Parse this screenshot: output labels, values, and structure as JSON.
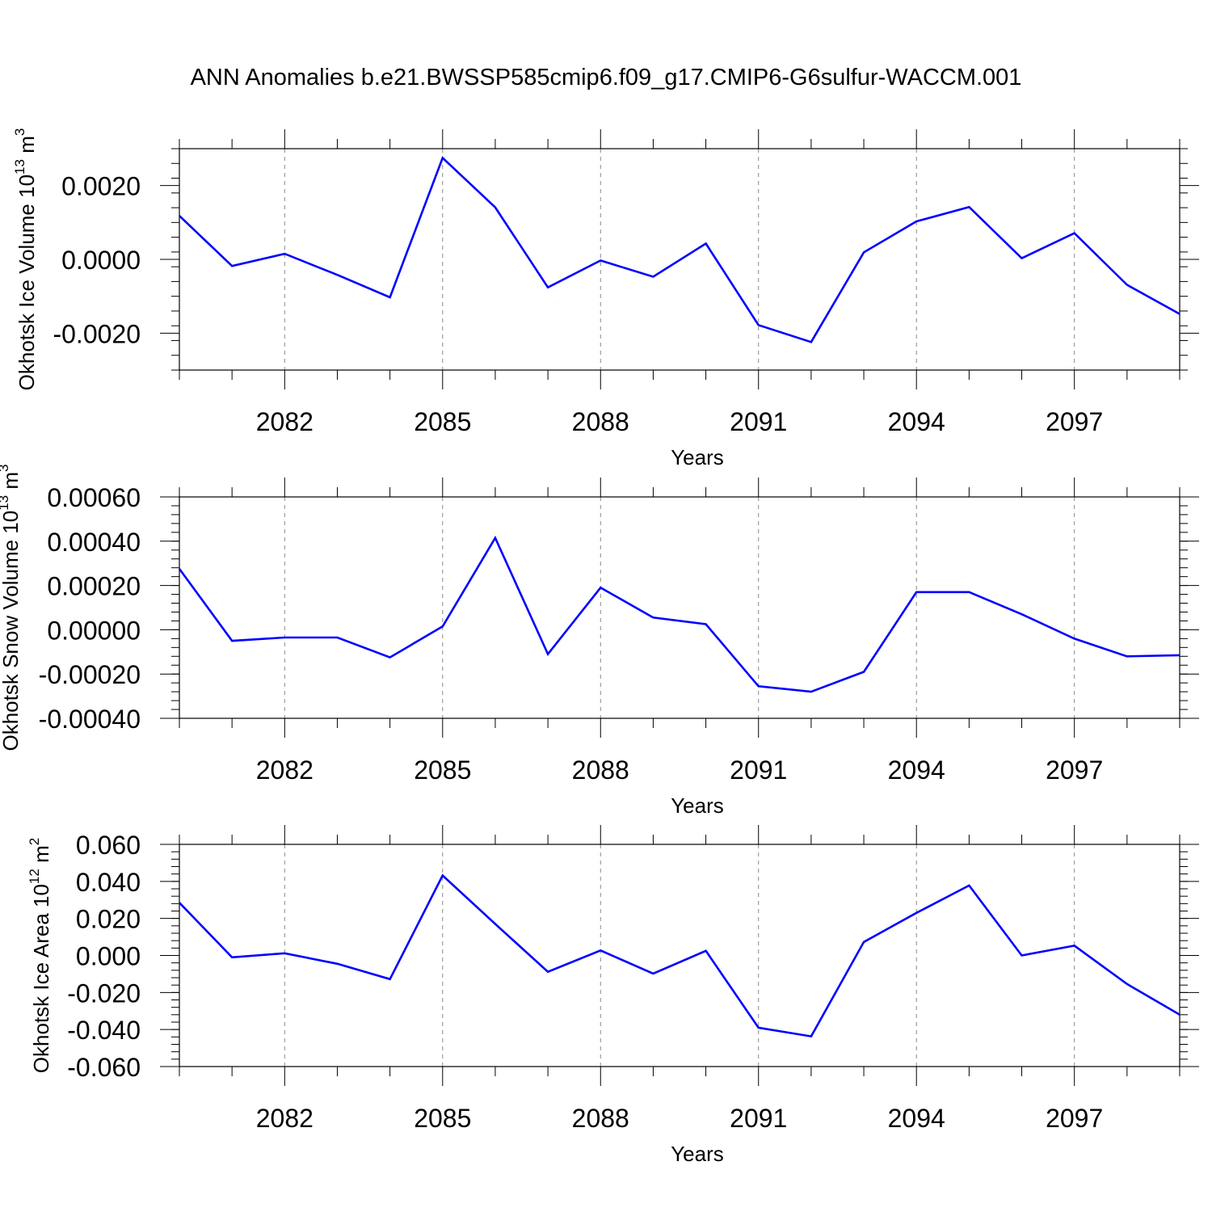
{
  "title": "ANN Anomalies b.e21.BWSSP585cmip6.f09_g17.CMIP6-G6sulfur-WACCM.001",
  "colors": {
    "line": "#0000ff",
    "axis": "#000000",
    "grid": "#888888"
  },
  "chart_data": [
    {
      "type": "line",
      "ylabel": "Okhotsk Ice Volume 10",
      "ylabel_exp": "13",
      "ylabel_unit": " m",
      "ylabel_unit_exp": "3",
      "xlabel": "Years",
      "xlim": [
        2080,
        2099
      ],
      "ylim": [
        -0.003,
        0.003
      ],
      "xticks": [
        2082,
        2085,
        2088,
        2091,
        2094,
        2097
      ],
      "xtick_labels": [
        "2082",
        "2085",
        "2088",
        "2091",
        "2094",
        "2097"
      ],
      "yticks": [
        -0.002,
        0.0,
        0.002
      ],
      "ytick_labels": [
        "-0.0020",
        "0.0000",
        "0.0020"
      ],
      "grid": "vertical dashed at major x ticks",
      "x": [
        2080,
        2081,
        2082,
        2083,
        2084,
        2085,
        2086,
        2087,
        2088,
        2089,
        2090,
        2091,
        2092,
        2093,
        2094,
        2095,
        2096,
        2097,
        2098,
        2099
      ],
      "y": [
        0.00118,
        -0.00018,
        0.00015,
        -0.00042,
        -0.00103,
        0.00275,
        0.00141,
        -0.00076,
        -3e-05,
        -0.00047,
        0.00043,
        -0.00178,
        -0.00224,
        0.00019,
        0.00103,
        0.00142,
        3e-05,
        0.00071,
        -0.00069,
        -0.00148
      ]
    },
    {
      "type": "line",
      "ylabel": "Okhotsk Snow Volume 10",
      "ylabel_exp": "13",
      "ylabel_unit": " m",
      "ylabel_unit_exp": "3",
      "xlabel": "Years",
      "xlim": [
        2080,
        2099
      ],
      "ylim": [
        -0.0004,
        0.0006
      ],
      "xticks": [
        2082,
        2085,
        2088,
        2091,
        2094,
        2097
      ],
      "xtick_labels": [
        "2082",
        "2085",
        "2088",
        "2091",
        "2094",
        "2097"
      ],
      "yticks": [
        -0.0004,
        -0.0002,
        0.0,
        0.0002,
        0.0004,
        0.0006
      ],
      "ytick_labels": [
        "-0.00040",
        "-0.00020",
        "0.00000",
        "0.00020",
        "0.00040",
        "0.00060"
      ],
      "grid": "vertical dashed at major x ticks",
      "x": [
        2080,
        2081,
        2082,
        2083,
        2084,
        2085,
        2086,
        2087,
        2088,
        2089,
        2090,
        2091,
        2092,
        2093,
        2094,
        2095,
        2096,
        2097,
        2098,
        2099
      ],
      "y": [
        0.000275,
        -5e-05,
        -3.5e-05,
        -3.5e-05,
        -0.000125,
        1.5e-05,
        0.000415,
        -0.00011,
        0.00019,
        5.5e-05,
        2.5e-05,
        -0.000255,
        -0.00028,
        -0.00019,
        0.00017,
        0.00017,
        7e-05,
        -4e-05,
        -0.00012,
        -0.000115
      ]
    },
    {
      "type": "line",
      "ylabel": "Okhotsk Ice Area 10",
      "ylabel_exp": "12",
      "ylabel_unit": " m",
      "ylabel_unit_exp": "2",
      "xlabel": "Years",
      "xlim": [
        2080,
        2099
      ],
      "ylim": [
        -0.06,
        0.06
      ],
      "xticks": [
        2082,
        2085,
        2088,
        2091,
        2094,
        2097
      ],
      "xtick_labels": [
        "2082",
        "2085",
        "2088",
        "2091",
        "2094",
        "2097"
      ],
      "yticks": [
        -0.06,
        -0.04,
        -0.02,
        0.0,
        0.02,
        0.04,
        0.06
      ],
      "ytick_labels": [
        "-0.060",
        "-0.040",
        "-0.020",
        "0.000",
        "0.020",
        "0.040",
        "0.060"
      ],
      "grid": "vertical dashed at major x ticks",
      "x": [
        2080,
        2081,
        2082,
        2083,
        2084,
        2085,
        2086,
        2087,
        2088,
        2089,
        2090,
        2091,
        2092,
        2093,
        2094,
        2095,
        2096,
        2097,
        2098,
        2099
      ],
      "y": [
        0.0285,
        -0.001,
        0.0012,
        -0.0045,
        -0.0128,
        0.0432,
        0.017,
        -0.0088,
        0.0027,
        -0.0098,
        0.0025,
        -0.039,
        -0.0437,
        0.0073,
        0.023,
        0.0378,
        0.0,
        0.0053,
        -0.0154,
        -0.032
      ]
    }
  ]
}
